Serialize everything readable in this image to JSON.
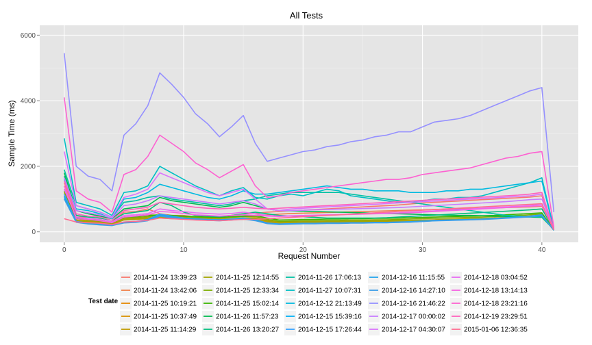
{
  "chart_data": {
    "type": "line",
    "title": "All Tests",
    "xlabel": "Request Number",
    "ylabel": "Sample Time (ms)",
    "xlim": [
      -2.05,
      43.05
    ],
    "ylim": [
      -320,
      6300
    ],
    "xticks": [
      0,
      10,
      20,
      30,
      40
    ],
    "yticks": [
      0,
      2000,
      4000,
      6000
    ],
    "grid": true,
    "legend": {
      "title": "Test date",
      "placement": "bottom"
    },
    "x": [
      0,
      1,
      2,
      3,
      4,
      5,
      6,
      7,
      8,
      9,
      10,
      11,
      12,
      13,
      14,
      15,
      16,
      17,
      18,
      19,
      20,
      21,
      22,
      23,
      24,
      25,
      26,
      27,
      28,
      29,
      30,
      31,
      32,
      33,
      34,
      35,
      36,
      37,
      38,
      39,
      40,
      41
    ],
    "series": [
      {
        "name": "2014-11-24 13:39:23",
        "color": "#F8766D",
        "values": [
          1500,
          500,
          400,
          380,
          300,
          600,
          620,
          700,
          550,
          500,
          500,
          450,
          450,
          470,
          500,
          550,
          560,
          600,
          620,
          650,
          660,
          680,
          700,
          720,
          740,
          760,
          780,
          800,
          820,
          850,
          880,
          900,
          920,
          940,
          960,
          980,
          1000,
          1020,
          1040,
          1060,
          1100,
          80
        ]
      },
      {
        "name": "2014-11-24 13:42:06",
        "color": "#EF7F49",
        "values": [
          1400,
          400,
          380,
          350,
          300,
          450,
          480,
          520,
          500,
          480,
          470,
          450,
          440,
          430,
          450,
          480,
          500,
          520,
          540,
          560,
          570,
          580,
          590,
          600,
          610,
          620,
          630,
          640,
          650,
          660,
          670,
          680,
          690,
          700,
          710,
          720,
          730,
          740,
          750,
          760,
          780,
          60
        ]
      },
      {
        "name": "2014-11-25 10:19:21",
        "color": "#E58700",
        "values": [
          1100,
          350,
          320,
          300,
          250,
          380,
          400,
          420,
          450,
          430,
          420,
          400,
          390,
          380,
          390,
          400,
          420,
          330,
          280,
          290,
          300,
          300,
          310,
          310,
          320,
          320,
          330,
          330,
          340,
          340,
          350,
          360,
          370,
          380,
          390,
          400,
          420,
          440,
          460,
          480,
          500,
          50
        ]
      },
      {
        "name": "2014-11-25 10:37:49",
        "color": "#D89000",
        "values": [
          1000,
          330,
          300,
          280,
          230,
          360,
          380,
          400,
          420,
          400,
          390,
          380,
          370,
          360,
          370,
          380,
          380,
          300,
          260,
          270,
          280,
          280,
          290,
          290,
          300,
          300,
          310,
          310,
          320,
          330,
          340,
          350,
          360,
          370,
          380,
          390,
          410,
          430,
          450,
          470,
          480,
          50
        ]
      },
      {
        "name": "2014-11-25 11:14:29",
        "color": "#C09B00",
        "values": [
          1200,
          360,
          330,
          310,
          260,
          390,
          410,
          430,
          460,
          440,
          430,
          410,
          400,
          390,
          400,
          420,
          430,
          350,
          300,
          300,
          310,
          310,
          320,
          320,
          330,
          330,
          340,
          340,
          350,
          350,
          360,
          370,
          380,
          390,
          400,
          410,
          420,
          440,
          460,
          480,
          500,
          60
        ]
      },
      {
        "name": "2014-11-25 12:14:55",
        "color": "#A3A500",
        "values": [
          1150,
          340,
          310,
          290,
          240,
          370,
          390,
          410,
          440,
          420,
          410,
          390,
          380,
          370,
          380,
          400,
          410,
          330,
          280,
          290,
          300,
          300,
          310,
          310,
          320,
          320,
          330,
          330,
          340,
          340,
          350,
          360,
          370,
          380,
          390,
          400,
          410,
          430,
          450,
          470,
          490,
          55
        ]
      },
      {
        "name": "2014-11-25 12:33:34",
        "color": "#7CAE00",
        "values": [
          1250,
          400,
          360,
          330,
          280,
          420,
          440,
          460,
          500,
          480,
          460,
          440,
          430,
          420,
          440,
          460,
          470,
          380,
          320,
          330,
          340,
          340,
          350,
          350,
          360,
          360,
          370,
          370,
          380,
          390,
          400,
          410,
          420,
          430,
          440,
          450,
          460,
          480,
          500,
          520,
          540,
          60
        ]
      },
      {
        "name": "2014-11-25 15:02:14",
        "color": "#39B600",
        "values": [
          1300,
          420,
          380,
          350,
          300,
          450,
          470,
          500,
          520,
          500,
          480,
          460,
          450,
          440,
          460,
          480,
          500,
          420,
          360,
          370,
          380,
          380,
          390,
          390,
          400,
          400,
          410,
          410,
          420,
          430,
          440,
          450,
          460,
          470,
          480,
          490,
          500,
          520,
          540,
          560,
          580,
          65
        ]
      },
      {
        "name": "2014-11-26 11:57:23",
        "color": "#00BB4E",
        "values": [
          1800,
          650,
          550,
          480,
          400,
          700,
          750,
          800,
          1050,
          950,
          900,
          850,
          800,
          750,
          800,
          900,
          800,
          700,
          650,
          640,
          630,
          620,
          610,
          600,
          590,
          580,
          570,
          560,
          550,
          540,
          530,
          520,
          510,
          500,
          500,
          490,
          480,
          470,
          460,
          450,
          440,
          70
        ]
      },
      {
        "name": "2014-11-26 13:20:27",
        "color": "#00BF7D",
        "values": [
          1700,
          500,
          450,
          420,
          350,
          550,
          600,
          650,
          900,
          800,
          600,
          500,
          480,
          460,
          500,
          550,
          600,
          550,
          500,
          480,
          460,
          440,
          420,
          420,
          420,
          420,
          420,
          430,
          450,
          470,
          490,
          510,
          530,
          550,
          570,
          590,
          610,
          630,
          650,
          670,
          700,
          80
        ]
      },
      {
        "name": "2014-11-26 17:06:13",
        "color": "#00C1A3",
        "values": [
          1900,
          800,
          700,
          600,
          450,
          900,
          950,
          1050,
          1100,
          1000,
          950,
          900,
          850,
          800,
          850,
          950,
          1000,
          1100,
          1150,
          1200,
          1200,
          1200,
          1200,
          1200,
          1150,
          1100,
          1050,
          1000,
          950,
          900,
          850,
          800,
          750,
          700,
          650,
          600,
          550,
          500,
          480,
          460,
          450,
          90
        ]
      },
      {
        "name": "2014-11-27 10:07:31",
        "color": "#00BFC4",
        "values": [
          2850,
          900,
          800,
          700,
          500,
          1200,
          1250,
          1400,
          2000,
          1800,
          1600,
          1400,
          1250,
          1100,
          1250,
          1350,
          1050,
          1000,
          1100,
          1150,
          1100,
          1200,
          1300,
          1250,
          1100,
          1050,
          1000,
          950,
          900,
          900,
          950,
          1000,
          1000,
          1050,
          1050,
          1100,
          1200,
          1300,
          1400,
          1500,
          1650,
          100
        ]
      },
      {
        "name": "2014-12-12 21:13:49",
        "color": "#00BAE0",
        "values": [
          1600,
          700,
          650,
          550,
          400,
          1000,
          1050,
          1200,
          1450,
          1350,
          1250,
          1150,
          1050,
          1000,
          1100,
          1250,
          1150,
          1150,
          1200,
          1250,
          1300,
          1350,
          1400,
          1350,
          1300,
          1300,
          1250,
          1250,
          1250,
          1200,
          1200,
          1200,
          1250,
          1250,
          1300,
          1300,
          1350,
          1400,
          1450,
          1500,
          1550,
          90
        ]
      },
      {
        "name": "2014-12-15 15:39:16",
        "color": "#00B0F6",
        "values": [
          1050,
          300,
          250,
          220,
          200,
          280,
          300,
          350,
          500,
          450,
          400,
          380,
          360,
          350,
          370,
          400,
          350,
          260,
          230,
          240,
          250,
          250,
          260,
          260,
          270,
          270,
          280,
          280,
          290,
          300,
          320,
          340,
          350,
          360,
          370,
          380,
          400,
          420,
          440,
          460,
          500,
          50
        ]
      },
      {
        "name": "2014-12-15 17:26:44",
        "color": "#35A2FF",
        "values": [
          1150,
          320,
          270,
          240,
          210,
          300,
          320,
          380,
          540,
          480,
          420,
          400,
          380,
          370,
          390,
          420,
          370,
          270,
          240,
          250,
          260,
          260,
          270,
          270,
          280,
          280,
          290,
          290,
          300,
          310,
          330,
          350,
          360,
          370,
          380,
          390,
          410,
          430,
          450,
          480,
          520,
          55
        ]
      },
      {
        "name": "2014-12-16 11:15:55",
        "color": "#22A4EC",
        "values": [
          1100,
          310,
          260,
          230,
          205,
          290,
          310,
          360,
          520,
          460,
          410,
          390,
          370,
          360,
          380,
          410,
          360,
          265,
          235,
          245,
          255,
          255,
          265,
          265,
          275,
          275,
          285,
          285,
          295,
          305,
          325,
          345,
          355,
          365,
          375,
          385,
          405,
          425,
          445,
          470,
          510,
          52
        ]
      },
      {
        "name": "2014-12-16 14:27:10",
        "color": "#3B9EE8",
        "values": [
          1000,
          290,
          240,
          210,
          190,
          270,
          290,
          340,
          480,
          430,
          390,
          370,
          350,
          340,
          360,
          390,
          340,
          250,
          225,
          235,
          245,
          245,
          255,
          255,
          265,
          265,
          275,
          275,
          285,
          295,
          315,
          335,
          345,
          355,
          365,
          375,
          395,
          415,
          435,
          455,
          495,
          48
        ]
      },
      {
        "name": "2014-12-16 21:46:22",
        "color": "#9590FF",
        "values": [
          5450,
          2000,
          1700,
          1600,
          1250,
          2950,
          3300,
          3850,
          4850,
          4500,
          4100,
          3600,
          3300,
          2900,
          3200,
          3550,
          2700,
          2150,
          2250,
          2350,
          2450,
          2500,
          2600,
          2650,
          2750,
          2800,
          2900,
          2950,
          3050,
          3050,
          3200,
          3350,
          3400,
          3450,
          3550,
          3700,
          3850,
          4000,
          4150,
          4300,
          4400,
          600
        ]
      },
      {
        "name": "2014-12-17 00:00:02",
        "color": "#C77CFF",
        "values": [
          1650,
          650,
          580,
          520,
          420,
          800,
          850,
          950,
          1100,
          1050,
          1000,
          950,
          900,
          850,
          900,
          950,
          850,
          700,
          650,
          650,
          660,
          670,
          680,
          690,
          700,
          710,
          720,
          730,
          740,
          760,
          780,
          800,
          820,
          840,
          860,
          880,
          900,
          920,
          950,
          980,
          1000,
          80
        ]
      },
      {
        "name": "2014-12-17 04:30:07",
        "color": "#D973FC",
        "values": [
          2450,
          800,
          700,
          600,
          450,
          1050,
          1150,
          1300,
          1800,
          1650,
          1500,
          1350,
          1200,
          1100,
          1200,
          1300,
          1000,
          700,
          650,
          700,
          720,
          740,
          760,
          780,
          800,
          820,
          840,
          860,
          880,
          900,
          920,
          940,
          960,
          980,
          1000,
          1020,
          1040,
          1060,
          1080,
          1100,
          1150,
          90
        ]
      },
      {
        "name": "2014-12-18 03:04:52",
        "color": "#E76BF3",
        "values": [
          1300,
          450,
          400,
          380,
          300,
          500,
          520,
          560,
          700,
          650,
          620,
          580,
          560,
          540,
          560,
          600,
          550,
          500,
          480,
          490,
          500,
          510,
          520,
          530,
          540,
          550,
          560,
          570,
          580,
          600,
          620,
          640,
          660,
          680,
          700,
          720,
          740,
          760,
          780,
          800,
          850,
          70
        ]
      },
      {
        "name": "2014-12-18 13:14:13",
        "color": "#F564E3",
        "values": [
          1400,
          400,
          380,
          340,
          280,
          450,
          480,
          520,
          620,
          600,
          560,
          520,
          500,
          480,
          500,
          520,
          500,
          480,
          470,
          480,
          490,
          500,
          510,
          520,
          530,
          540,
          550,
          560,
          570,
          580,
          600,
          620,
          640,
          660,
          680,
          700,
          720,
          740,
          760,
          780,
          800,
          70
        ]
      },
      {
        "name": "2014-12-18 23:21:16",
        "color": "#FD61D1",
        "values": [
          4100,
          1250,
          1000,
          900,
          600,
          1750,
          1900,
          2300,
          2950,
          2700,
          2450,
          2100,
          1900,
          1650,
          1850,
          2050,
          1400,
          1050,
          1100,
          1200,
          1250,
          1300,
          1350,
          1400,
          1450,
          1500,
          1550,
          1600,
          1600,
          1650,
          1750,
          1800,
          1850,
          1900,
          1950,
          2050,
          2150,
          2250,
          2300,
          2400,
          2450,
          150
        ]
      },
      {
        "name": "2014-12-19 23:29:51",
        "color": "#FF62BC",
        "values": [
          1550,
          550,
          480,
          450,
          350,
          650,
          700,
          750,
          900,
          850,
          800,
          750,
          720,
          700,
          720,
          750,
          720,
          700,
          720,
          740,
          760,
          780,
          800,
          820,
          840,
          860,
          880,
          900,
          920,
          940,
          960,
          980,
          1000,
          1020,
          1040,
          1060,
          1080,
          1100,
          1120,
          1150,
          1200,
          80
        ]
      },
      {
        "name": "2015-01-06 12:36:35",
        "color": "#FF6C91",
        "values": [
          400,
          300,
          280,
          260,
          220,
          300,
          320,
          350,
          420,
          400,
          380,
          360,
          350,
          340,
          360,
          380,
          380,
          400,
          420,
          440,
          460,
          480,
          500,
          520,
          540,
          560,
          580,
          600,
          620,
          640,
          660,
          680,
          700,
          720,
          740,
          760,
          780,
          800,
          820,
          840,
          860,
          60
        ]
      }
    ]
  }
}
